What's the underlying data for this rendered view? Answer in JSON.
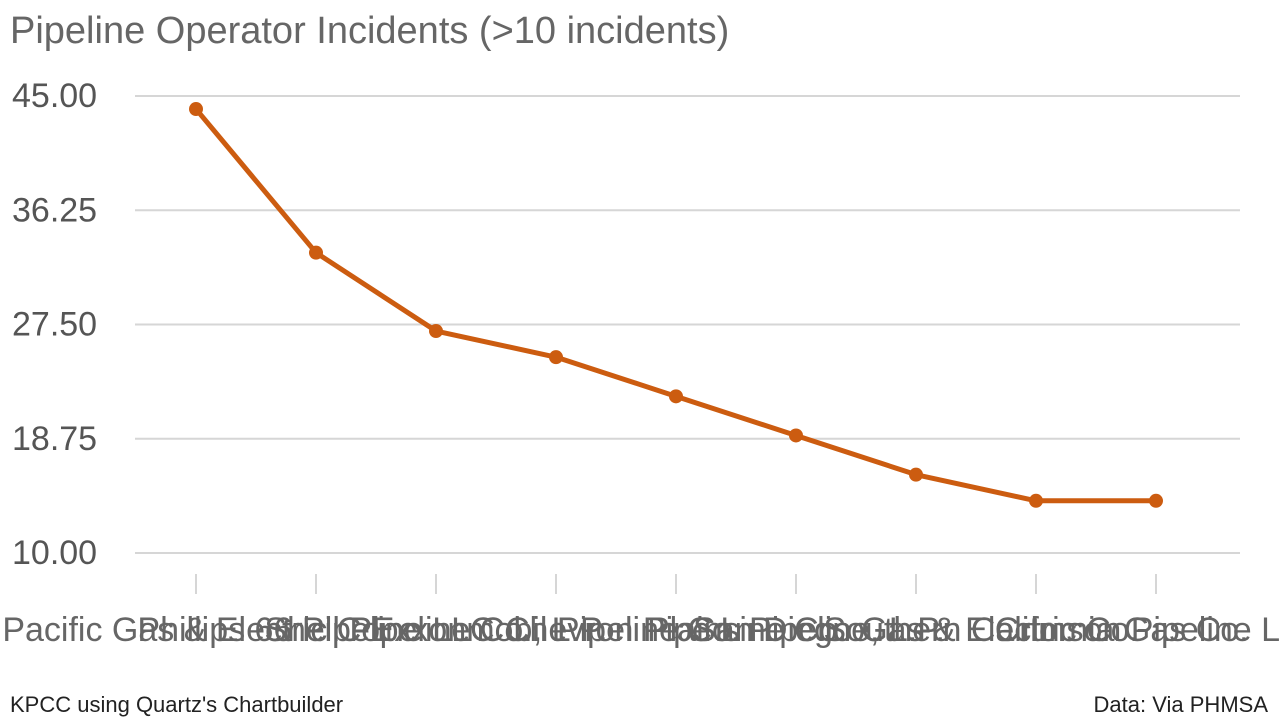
{
  "title": "Pipeline Operator Incidents (>10 incidents)",
  "credit": "KPCC using Quartz's Chartbuilder",
  "source": "Data: Via PHMSA",
  "line_color": "#cc5c10",
  "chart_data": {
    "type": "line",
    "title": "Pipeline Operator Incidents (>10 incidents)",
    "xlabel": "",
    "ylabel": "",
    "ylim": [
      10,
      45
    ],
    "yticks": [
      "45.00",
      "36.25",
      "27.50",
      "18.75",
      "10.00"
    ],
    "grid": true,
    "legend": "none",
    "categories": [
      "Pacific Gas & Electric Co.",
      "Phillips 66 Pipeline LLC",
      "Shell Pipeline Co., L.P.",
      "Exxonmobil Pipeline Co.",
      "Chevron Pipe Line Co.",
      "Plains Pipeline, L.P.",
      "San Diego Gas & Electric Co.",
      "Southern California Gas Co.",
      "Crimson Pipeline L.P."
    ],
    "series": [
      {
        "values": [
          44,
          33,
          27,
          25,
          22,
          19,
          16,
          14,
          14
        ]
      }
    ]
  }
}
